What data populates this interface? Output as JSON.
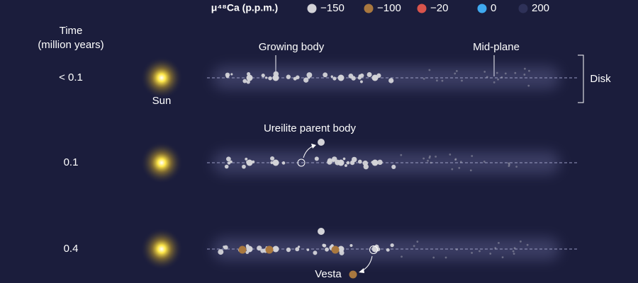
{
  "legend": {
    "title": "μ⁴⁸Ca (p.p.m.)",
    "items": [
      {
        "label": "−150",
        "color": "#d3d3d8"
      },
      {
        "label": "−100",
        "color": "#a9783f"
      },
      {
        "label": "−20",
        "color": "#d9544c"
      },
      {
        "label": "0",
        "color": "#3fa9f0"
      },
      {
        "label": "200",
        "color": "#2e3158"
      }
    ]
  },
  "time_axis": {
    "title_lines": [
      "Time",
      "(million years)"
    ],
    "rows": [
      {
        "label": "< 0.1"
      },
      {
        "label": "0.1"
      },
      {
        "label": "0.4"
      }
    ]
  },
  "annotations": {
    "sun": "Sun",
    "growing_body": "Growing body",
    "mid_plane": "Mid-plane",
    "disk": "Disk",
    "ureilite": "Ureilite parent body",
    "vesta": "Vesta"
  }
}
